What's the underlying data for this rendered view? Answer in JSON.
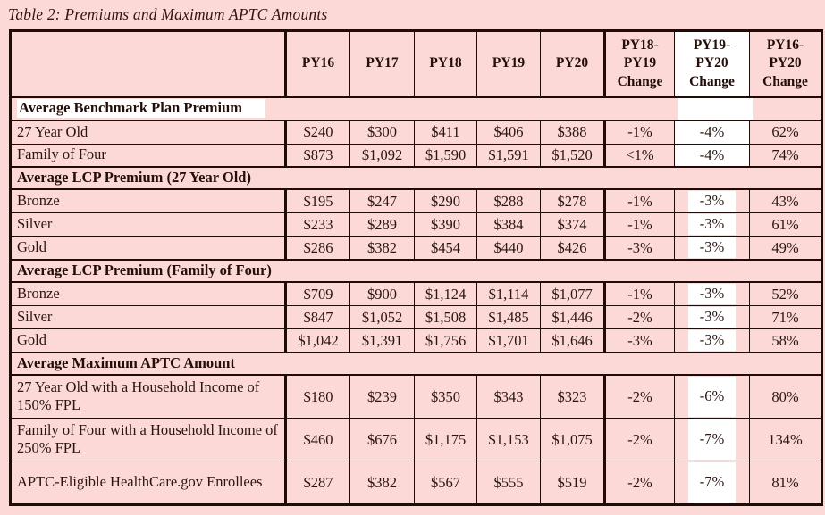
{
  "title": "Table 2: Premiums and Maximum APTC Amounts",
  "colors": {
    "page_background": "#fcd9d6",
    "cell_background": "#fcd9d6",
    "border": "#1f0c08",
    "text": "#2a1512",
    "highlight": "#ffffff"
  },
  "table": {
    "header": {
      "labels": [
        "",
        "PY16",
        "PY17",
        "PY18",
        "PY19",
        "PY20",
        "PY18-PY19 Change",
        "PY19-PY20 Change",
        "PY16-PY20 Change"
      ]
    },
    "sections": [
      {
        "heading": "Average Benchmark Plan Premium",
        "rows": [
          {
            "label": "27 Year Old",
            "values": [
              "$240",
              "$300",
              "$411",
              "$406",
              "$388",
              "-1%",
              "-4%",
              "62%"
            ]
          },
          {
            "label": "Family of Four",
            "values": [
              "$873",
              "$1,092",
              "$1,590",
              "$1,591",
              "$1,520",
              "<1%",
              "-4%",
              "74%"
            ]
          }
        ]
      },
      {
        "heading": "Average LCP Premium (27 Year Old)",
        "rows": [
          {
            "label": "Bronze",
            "values": [
              "$195",
              "$247",
              "$290",
              "$288",
              "$278",
              "-1%",
              "-3%",
              "43%"
            ]
          },
          {
            "label": "Silver",
            "values": [
              "$233",
              "$289",
              "$390",
              "$384",
              "$374",
              "-1%",
              "-3%",
              "61%"
            ]
          },
          {
            "label": "Gold",
            "values": [
              "$286",
              "$382",
              "$454",
              "$440",
              "$426",
              "-3%",
              "-3%",
              "49%"
            ]
          }
        ]
      },
      {
        "heading": "Average LCP Premium (Family of Four)",
        "rows": [
          {
            "label": "Bronze",
            "values": [
              "$709",
              "$900",
              "$1,124",
              "$1,114",
              "$1,077",
              "-1%",
              "-3%",
              "52%"
            ]
          },
          {
            "label": "Silver",
            "values": [
              "$847",
              "$1,052",
              "$1,508",
              "$1,485",
              "$1,446",
              "-2%",
              "-3%",
              "71%"
            ]
          },
          {
            "label": "Gold",
            "values": [
              "$1,042",
              "$1,391",
              "$1,756",
              "$1,701",
              "$1,646",
              "-3%",
              "-3%",
              "58%"
            ]
          }
        ]
      },
      {
        "heading": "Average Maximum APTC Amount",
        "rows": [
          {
            "label": "27 Year Old with a Household Income of 150% FPL",
            "values": [
              "$180",
              "$239",
              "$350",
              "$343",
              "$323",
              "-2%",
              "-6%",
              "80%"
            ]
          },
          {
            "label": "Family of Four with a Household Income of 250% FPL",
            "values": [
              "$460",
              "$676",
              "$1,175",
              "$1,153",
              "$1,075",
              "-2%",
              "-7%",
              "134%"
            ]
          },
          {
            "label": "APTC-Eligible HealthCare.gov Enrollees",
            "values": [
              "$287",
              "$382",
              "$567",
              "$555",
              "$519",
              "-2%",
              "-7%",
              "81%"
            ]
          }
        ]
      }
    ]
  }
}
